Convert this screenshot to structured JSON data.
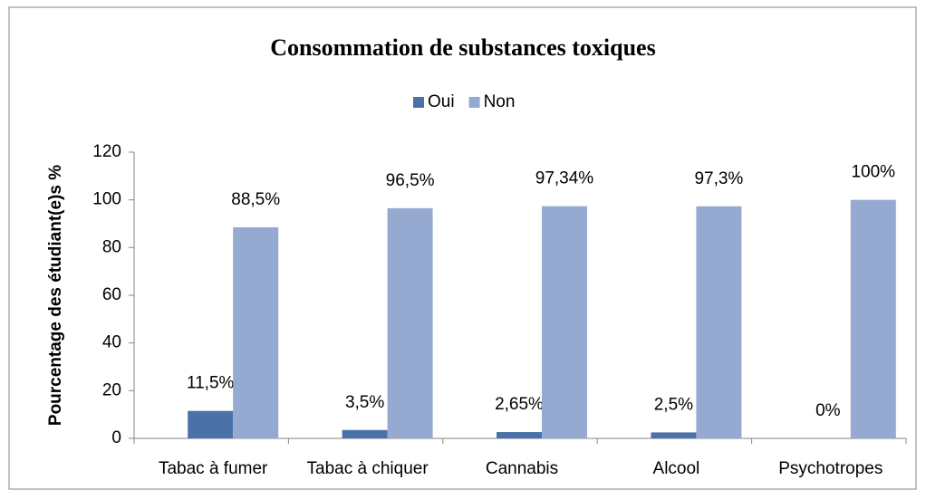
{
  "chart_data": {
    "type": "bar",
    "title": "Consommation de substances toxiques",
    "y_label": "Pourcentage des étudiant(e)s %",
    "categories": [
      "Tabac à fumer",
      "Tabac à chiquer",
      "Cannabis",
      "Alcool",
      "Psychotropes"
    ],
    "series": [
      {
        "name": "Oui",
        "color": "#4a72a8",
        "values": [
          11.5,
          3.5,
          2.65,
          2.5,
          0
        ],
        "value_labels": [
          "11,5%",
          "3,5%",
          "2,65%",
          "2,5%",
          "0%"
        ]
      },
      {
        "name": "Non",
        "color": "#95a9d1",
        "values": [
          88.5,
          96.5,
          97.34,
          97.3,
          100
        ],
        "value_labels": [
          "88,5%",
          "96,5%",
          "97,34%",
          "97,3%",
          "100%"
        ]
      }
    ],
    "ylim": [
      0,
      120
    ],
    "yticks": [
      0,
      20,
      40,
      60,
      80,
      100,
      120
    ],
    "grid": false,
    "legend": "top"
  }
}
